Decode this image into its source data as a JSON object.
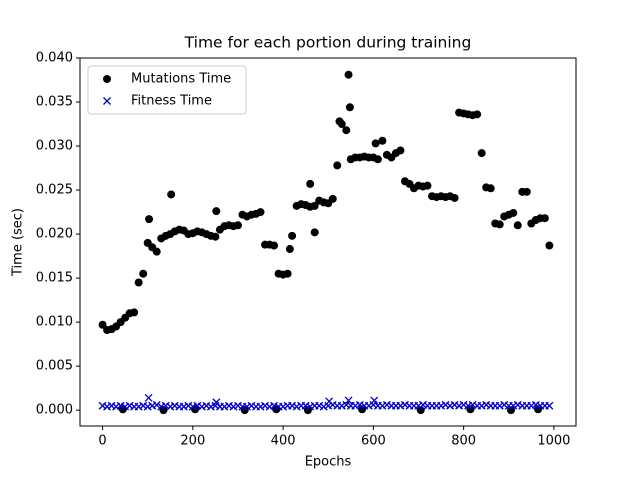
{
  "chart_data": {
    "type": "scatter",
    "title": "Time for each portion during training",
    "xlabel": "Epochs",
    "ylabel": "Time (sec)",
    "xlim": [
      -50,
      1049
    ],
    "ylim": [
      -0.0018,
      0.04
    ],
    "xticks": [
      0,
      200,
      400,
      600,
      800,
      1000
    ],
    "yticks": [
      {
        "value": 0,
        "label": "0.000"
      },
      {
        "value": 0.005,
        "label": "0.005"
      },
      {
        "value": 0.01,
        "label": "0.010"
      },
      {
        "value": 0.015,
        "label": "0.015"
      },
      {
        "value": 0.02,
        "label": "0.020"
      },
      {
        "value": 0.025,
        "label": "0.025"
      },
      {
        "value": 0.03,
        "label": "0.030"
      },
      {
        "value": 0.035,
        "label": "0.035"
      },
      {
        "value": 0.04,
        "label": "0.040"
      }
    ],
    "legend": "upper left",
    "series": [
      {
        "name": "Mutations Time",
        "color": "#000000",
        "marker": "circle",
        "x": [
          0,
          10,
          20,
          30,
          40,
          50,
          60,
          70,
          80,
          90,
          100,
          110,
          120,
          130,
          140,
          150,
          160,
          170,
          180,
          190,
          200,
          210,
          220,
          230,
          240,
          250,
          260,
          270,
          280,
          290,
          300,
          310,
          320,
          330,
          340,
          350,
          360,
          370,
          380,
          390,
          400,
          410,
          420,
          430,
          440,
          450,
          460,
          470,
          480,
          490,
          500,
          510,
          520,
          530,
          540,
          550,
          560,
          570,
          580,
          590,
          600,
          610,
          620,
          630,
          640,
          650,
          660,
          670,
          680,
          690,
          700,
          710,
          720,
          730,
          740,
          750,
          760,
          770,
          780,
          790,
          800,
          810,
          820,
          830,
          840,
          850,
          860,
          870,
          880,
          890,
          900,
          910,
          920,
          930,
          940,
          950,
          960,
          970,
          980,
          990,
          545,
          548,
          152,
          252,
          103,
          460,
          415,
          470,
          525,
          605,
          45,
          135,
          205,
          315,
          385,
          455,
          575,
          705,
          815,
          905,
          965
        ],
        "values": [
          0.0097,
          0.0091,
          0.0092,
          0.0095,
          0.01,
          0.0105,
          0.011,
          0.0111,
          0.0145,
          0.0155,
          0.019,
          0.0185,
          0.018,
          0.0195,
          0.0198,
          0.02,
          0.0203,
          0.0205,
          0.0204,
          0.02,
          0.0201,
          0.0203,
          0.0202,
          0.02,
          0.0198,
          0.0197,
          0.0205,
          0.0209,
          0.021,
          0.0209,
          0.021,
          0.0222,
          0.022,
          0.0222,
          0.0223,
          0.0225,
          0.0188,
          0.0188,
          0.0187,
          0.0155,
          0.0154,
          0.0155,
          0.0198,
          0.0232,
          0.0234,
          0.0233,
          0.0231,
          0.0232,
          0.0238,
          0.0236,
          0.0235,
          0.024,
          0.0278,
          0.0325,
          0.0318,
          0.0285,
          0.0287,
          0.0287,
          0.0288,
          0.0287,
          0.0287,
          0.0285,
          0.0306,
          0.029,
          0.0287,
          0.0292,
          0.0295,
          0.026,
          0.0257,
          0.0252,
          0.0255,
          0.0254,
          0.0255,
          0.0243,
          0.0242,
          0.0243,
          0.0242,
          0.0243,
          0.0241,
          0.0338,
          0.0337,
          0.0336,
          0.0335,
          0.0336,
          0.0292,
          0.0253,
          0.0252,
          0.0212,
          0.0211,
          0.022,
          0.0222,
          0.0224,
          0.021,
          0.0248,
          0.0248,
          0.0212,
          0.0216,
          0.0218,
          0.0218,
          0.0187,
          0.0381,
          0.0344,
          0.0245,
          0.0226,
          0.0217,
          0.0257,
          0.0183,
          0.0202,
          0.0328,
          0.0303,
          0.0001,
          0,
          0.0001,
          0,
          0.0001,
          0,
          0.0001,
          0,
          0.0001,
          0,
          0.0001
        ]
      },
      {
        "name": "Fitness Time",
        "color": "#0000cc",
        "marker": "x",
        "x": [
          0,
          10,
          20,
          30,
          40,
          50,
          60,
          70,
          80,
          90,
          100,
          110,
          120,
          130,
          140,
          150,
          160,
          170,
          180,
          190,
          200,
          210,
          220,
          230,
          240,
          250,
          260,
          270,
          280,
          290,
          300,
          310,
          320,
          330,
          340,
          350,
          360,
          370,
          380,
          390,
          400,
          410,
          420,
          430,
          440,
          450,
          460,
          470,
          480,
          490,
          500,
          510,
          520,
          530,
          540,
          550,
          560,
          570,
          580,
          590,
          600,
          610,
          620,
          630,
          640,
          650,
          660,
          670,
          680,
          690,
          700,
          710,
          720,
          730,
          740,
          750,
          760,
          770,
          780,
          790,
          800,
          810,
          820,
          830,
          840,
          850,
          860,
          870,
          880,
          890,
          900,
          910,
          920,
          930,
          940,
          950,
          960,
          970,
          980,
          990,
          102,
          252,
          502,
          545,
          602
        ],
        "values": [
          0.0005,
          0.0004,
          0.0005,
          0.0004,
          0.0005,
          0.0004,
          0.0005,
          0.0004,
          0.0004,
          0.0005,
          0.0004,
          0.0005,
          0.0006,
          0.0004,
          0.0005,
          0.0004,
          0.0005,
          0.0004,
          0.0004,
          0.0005,
          0.0004,
          0.0005,
          0.0004,
          0.0005,
          0.0004,
          0.0005,
          0.0004,
          0.0004,
          0.0005,
          0.0004,
          0.0005,
          0.0004,
          0.0004,
          0.0005,
          0.0004,
          0.0004,
          0.0005,
          0.0004,
          0.0005,
          0.0004,
          0.0004,
          0.0005,
          0.0005,
          0.0004,
          0.0005,
          0.0005,
          0.0004,
          0.0005,
          0.0005,
          0.0004,
          0.0005,
          0.0006,
          0.0005,
          0.0005,
          0.0006,
          0.0005,
          0.0005,
          0.0006,
          0.0005,
          0.0005,
          0.0006,
          0.0005,
          0.0005,
          0.0006,
          0.0005,
          0.0005,
          0.0005,
          0.0006,
          0.0005,
          0.0005,
          0.0005,
          0.0006,
          0.0005,
          0.0005,
          0.0005,
          0.0005,
          0.0006,
          0.0005,
          0.0006,
          0.0005,
          0.0006,
          0.0005,
          0.0006,
          0.0005,
          0.0005,
          0.0006,
          0.0005,
          0.0005,
          0.0005,
          0.0006,
          0.0005,
          0.0005,
          0.0006,
          0.0005,
          0.0005,
          0.0005,
          0.0006,
          0.0005,
          0.0005,
          0.0005,
          0.0014,
          0.0009,
          0.001,
          0.0011,
          0.0011
        ]
      }
    ]
  }
}
